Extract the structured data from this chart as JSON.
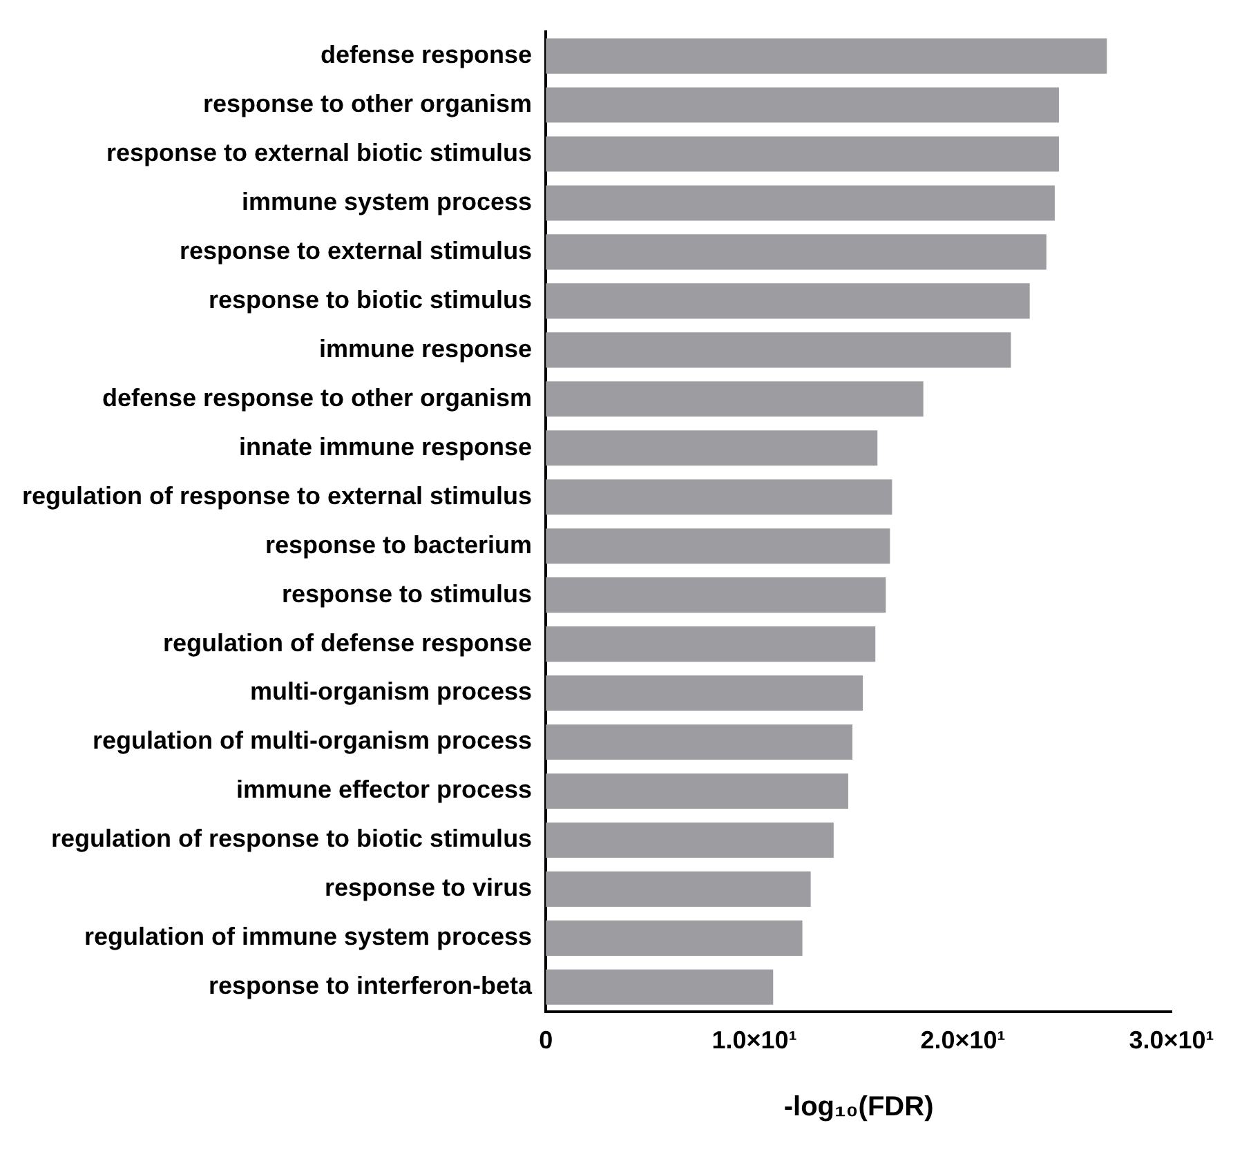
{
  "chart_data": {
    "type": "bar",
    "orientation": "horizontal",
    "xlabel": "-log₁₀(FDR)",
    "categories": [
      "defense response",
      "response to other organism",
      "response to external biotic stimulus",
      "immune system process",
      "response to external stimulus",
      "response to biotic stimulus",
      "immune response",
      "defense response to other organism",
      "innate immune response",
      "regulation of response to external stimulus",
      "response to bacterium",
      "response to stimulus",
      "regulation of defense response",
      "multi-organism process",
      "regulation of multi-organism process",
      "immune effector process",
      "regulation of response to biotic stimulus",
      "response to virus",
      "regulation of immune system process",
      "response to interferon-beta"
    ],
    "values": [
      26.9,
      24.6,
      24.6,
      24.4,
      24.0,
      23.2,
      22.3,
      18.1,
      15.9,
      16.6,
      16.5,
      16.3,
      15.8,
      15.2,
      14.7,
      14.5,
      13.8,
      12.7,
      12.3,
      10.9
    ],
    "color": "#9d9ca1",
    "xlim": [
      0,
      30
    ],
    "xticks": [
      0,
      {
        "value": 10,
        "label": "1.0×10¹"
      },
      {
        "value": 20,
        "label": "2.0×10¹"
      },
      {
        "value": 30,
        "label": "3.0×10¹"
      }
    ],
    "grid": false,
    "legend": false
  }
}
